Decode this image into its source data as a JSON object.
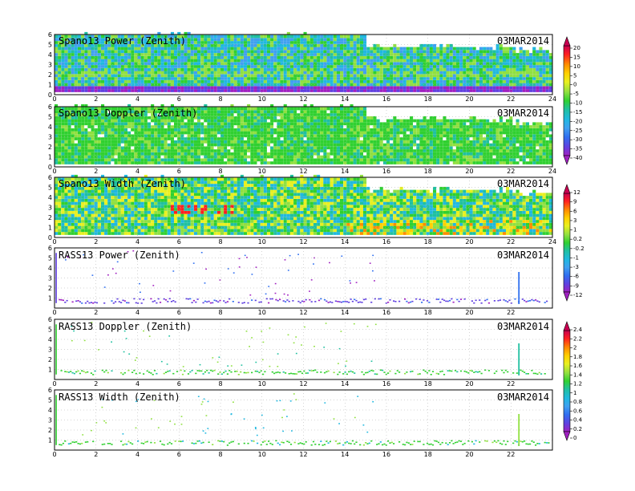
{
  "chart_data": [
    {
      "type": "heatmap",
      "title": "Spano13 Power (Zenith)",
      "date": "03MAR2014",
      "x_ticks": [
        "0",
        "2",
        "4",
        "6",
        "8",
        "10",
        "12",
        "14",
        "16",
        "18",
        "20",
        "22",
        "24"
      ],
      "y_ticks": [
        "0",
        "1",
        "2",
        "3",
        "4",
        "5",
        "6"
      ],
      "xlim": [
        0,
        24
      ],
      "ylim": [
        0,
        6
      ],
      "grid": true,
      "colorbar_ticks": [
        "20",
        "15",
        "10",
        "5",
        "0",
        "-5",
        "-10",
        "-15",
        "-20",
        "-25",
        "-30",
        "-35",
        "-40"
      ]
    },
    {
      "type": "heatmap",
      "title": "Spano13 Doppler (Zenith)",
      "date": "03MAR2014",
      "x_ticks": [
        "0",
        "2",
        "4",
        "6",
        "8",
        "10",
        "12",
        "14",
        "16",
        "18",
        "20",
        "22",
        "24"
      ],
      "y_ticks": [
        "0",
        "1",
        "2",
        "3",
        "4",
        "5",
        "6"
      ],
      "xlim": [
        0,
        24
      ],
      "ylim": [
        0,
        6
      ],
      "grid": true
    },
    {
      "type": "heatmap",
      "title": "Spano13 Width (Zenith)",
      "date": "03MAR2014",
      "x_ticks": [
        "0",
        "2",
        "4",
        "6",
        "8",
        "10",
        "12",
        "14",
        "16",
        "18",
        "20",
        "22",
        "24"
      ],
      "y_ticks": [
        "0",
        "1",
        "2",
        "3",
        "4",
        "5",
        "6"
      ],
      "xlim": [
        0,
        24
      ],
      "ylim": [
        0,
        6
      ],
      "grid": true
    },
    {
      "type": "heatmap",
      "title": "RASS13 Power (Zenith)",
      "date": "03MAR2014",
      "x_ticks": [
        "0",
        "2",
        "4",
        "6",
        "8",
        "10",
        "12",
        "14",
        "16",
        "18",
        "20",
        "22"
      ],
      "y_ticks": [
        "1",
        "2",
        "3",
        "4",
        "5",
        "6"
      ],
      "xlim": [
        0,
        24
      ],
      "ylim": [
        0,
        6
      ],
      "grid": true,
      "colorbar_ticks": [
        "12",
        "9",
        "6",
        "3",
        "1",
        "0.2",
        "-0.2",
        "-1",
        "-3",
        "-6",
        "-9",
        "-12"
      ]
    },
    {
      "type": "heatmap",
      "title": "RASS13 Doppler (Zenith)",
      "date": "03MAR2014",
      "x_ticks": [
        "0",
        "2",
        "4",
        "6",
        "8",
        "10",
        "12",
        "14",
        "16",
        "18",
        "20",
        "22"
      ],
      "y_ticks": [
        "1",
        "2",
        "3",
        "4",
        "5",
        "6"
      ],
      "xlim": [
        0,
        24
      ],
      "ylim": [
        0,
        6
      ],
      "grid": true
    },
    {
      "type": "heatmap",
      "title": "RASS13 Width (Zenith)",
      "date": "03MAR2014",
      "x_ticks": [
        "0",
        "2",
        "4",
        "6",
        "8",
        "10",
        "12",
        "14",
        "16",
        "18",
        "20",
        "22"
      ],
      "y_ticks": [
        "1",
        "2",
        "3",
        "4",
        "5",
        "6"
      ],
      "xlim": [
        0,
        24
      ],
      "ylim": [
        0,
        6
      ],
      "grid": true,
      "colorbar_ticks": [
        "2.4",
        "2.2",
        "2",
        "1.8",
        "1.6",
        "1.4",
        "1.2",
        "1",
        "0.8",
        "0.6",
        "0.4",
        "0.2",
        "0"
      ]
    }
  ],
  "colors": {
    "scale": [
      "#c80050",
      "#ff2020",
      "#ff8c00",
      "#ffd000",
      "#e8f020",
      "#90e040",
      "#30d030",
      "#20c0a0",
      "#20b8e0",
      "#40a0f0",
      "#3070f0",
      "#6040e0",
      "#a020c0"
    ]
  }
}
